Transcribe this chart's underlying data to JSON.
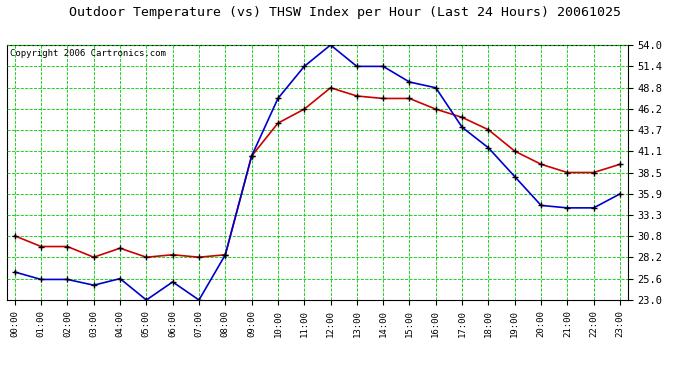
{
  "title": "Outdoor Temperature (vs) THSW Index per Hour (Last 24 Hours) 20061025",
  "copyright": "Copyright 2006 Cartronics.com",
  "hours": [
    0,
    1,
    2,
    3,
    4,
    5,
    6,
    7,
    8,
    9,
    10,
    11,
    12,
    13,
    14,
    15,
    16,
    17,
    18,
    19,
    20,
    21,
    22,
    23
  ],
  "temp_red": [
    30.8,
    29.5,
    29.5,
    28.2,
    29.3,
    28.2,
    28.5,
    28.2,
    28.5,
    40.5,
    44.5,
    46.2,
    48.8,
    47.8,
    47.5,
    47.5,
    46.2,
    45.2,
    43.7,
    41.1,
    39.5,
    38.5,
    38.5,
    39.5
  ],
  "thsw_blue": [
    26.4,
    25.5,
    25.5,
    24.8,
    25.6,
    23.0,
    25.2,
    23.0,
    28.5,
    40.5,
    47.5,
    51.4,
    54.0,
    51.4,
    51.4,
    49.5,
    48.8,
    44.0,
    41.5,
    38.0,
    34.5,
    34.2,
    34.2,
    35.9
  ],
  "ylim_min": 23.0,
  "ylim_max": 54.0,
  "yticks": [
    23.0,
    25.6,
    28.2,
    30.8,
    33.3,
    35.9,
    38.5,
    41.1,
    43.7,
    46.2,
    48.8,
    51.4,
    54.0
  ],
  "bg_color": "#ffffff",
  "plot_bg": "#ffffff",
  "grid_color": "#00cc00",
  "line_red": "#cc0000",
  "line_blue": "#0000cc",
  "marker_color": "#000000",
  "title_fontsize": 9.5,
  "copyright_fontsize": 6.5
}
